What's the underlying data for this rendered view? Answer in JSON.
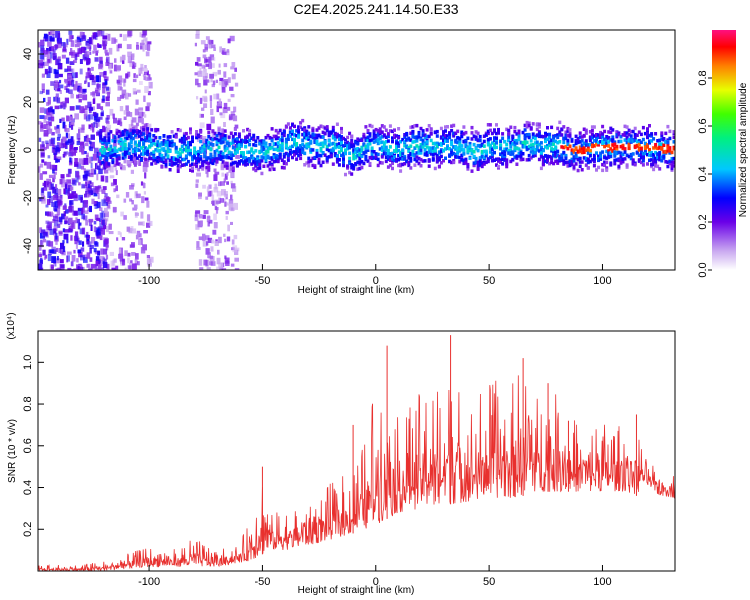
{
  "title": "C2E4.2025.241.14.50.E33",
  "spectrogram": {
    "type": "heatmap",
    "xlabel": "Height of straight line (km)",
    "ylabel": "Frequency (Hz)",
    "xlim": [
      -149,
      132
    ],
    "ylim": [
      -50,
      50
    ],
    "xticks": [
      -100,
      -50,
      0,
      50,
      100
    ],
    "yticks": [
      -40,
      -20,
      0,
      20,
      40
    ],
    "centerline": [
      [
        -120,
        0
      ],
      [
        -110,
        2
      ],
      [
        -100,
        1
      ],
      [
        -90,
        -1
      ],
      [
        -80,
        0
      ],
      [
        -70,
        1
      ],
      [
        -60,
        0
      ],
      [
        -50,
        -1
      ],
      [
        -45,
        0
      ],
      [
        -40,
        2
      ],
      [
        -38,
        4
      ],
      [
        -30,
        2
      ],
      [
        -25,
        1
      ],
      [
        -20,
        3
      ],
      [
        -15,
        -1
      ],
      [
        -10,
        -3
      ],
      [
        -5,
        1
      ],
      [
        0,
        2
      ],
      [
        10,
        0
      ],
      [
        20,
        2
      ],
      [
        30,
        1
      ],
      [
        35,
        2
      ],
      [
        40,
        0
      ],
      [
        45,
        -1
      ],
      [
        50,
        2
      ],
      [
        55,
        1
      ],
      [
        60,
        1
      ],
      [
        65,
        3
      ],
      [
        70,
        2
      ],
      [
        75,
        1
      ],
      [
        80,
        2
      ],
      [
        85,
        0
      ],
      [
        90,
        0
      ],
      [
        100,
        1
      ],
      [
        110,
        1
      ],
      [
        120,
        1
      ],
      [
        132,
        0
      ]
    ]
  },
  "colorbar": {
    "label": "Normalized spectral amplitude",
    "ticks": [
      "0.0",
      "0.2",
      "0.4",
      "0.6",
      "0.8"
    ]
  },
  "chart_data": [
    {
      "type": "heatmap",
      "title": "C2E4.2025.241.14.50.E33",
      "xlabel": "Height of straight line (km)",
      "ylabel": "Frequency (Hz)",
      "xlim": [
        -149,
        132
      ],
      "ylim": [
        -50,
        50
      ],
      "description_values": "spectral energy concentrated near 0 Hz (about -5 to 5 Hz) from -120 km to 132 km; diffuse noise at heights below -100 km and around -75 km"
    },
    {
      "type": "line",
      "xlabel": "Height of straight line (km)",
      "ylabel": "SNR (10 * v/v)",
      "yscale_label": "(x10⁴)",
      "xlim": [
        -149,
        132
      ],
      "ylim": [
        0,
        1.15
      ],
      "xticks": [
        -100,
        -50,
        0,
        50,
        100
      ],
      "yticks": [
        0.2,
        0.4,
        0.6,
        0.8,
        1.0
      ],
      "color": "#e8302e",
      "envelope": {
        "x": [
          -149,
          -130,
          -120,
          -110,
          -100,
          -90,
          -80,
          -70,
          -60,
          -55,
          -50,
          -45,
          -40,
          -30,
          -20,
          -10,
          -5,
          0,
          5,
          10,
          20,
          30,
          33,
          40,
          50,
          60,
          65,
          70,
          80,
          90,
          100,
          110,
          115,
          118,
          125,
          132
        ],
        "low": [
          0.0,
          0.0,
          0.0,
          0.01,
          0.02,
          0.02,
          0.02,
          0.02,
          0.04,
          0.05,
          0.08,
          0.1,
          0.1,
          0.12,
          0.15,
          0.18,
          0.2,
          0.22,
          0.25,
          0.28,
          0.3,
          0.3,
          0.32,
          0.33,
          0.35,
          0.35,
          0.36,
          0.38,
          0.38,
          0.38,
          0.38,
          0.38,
          0.36,
          0.42,
          0.36,
          0.35
        ],
        "high": [
          0.03,
          0.03,
          0.05,
          0.08,
          0.12,
          0.1,
          0.16,
          0.1,
          0.14,
          0.25,
          0.48,
          0.28,
          0.3,
          0.36,
          0.42,
          0.5,
          0.62,
          0.95,
          1.05,
          0.72,
          0.88,
          1.0,
          1.13,
          0.8,
          0.92,
          0.9,
          1.0,
          0.85,
          0.85,
          0.7,
          0.72,
          0.7,
          0.75,
          0.55,
          0.5,
          0.52
        ]
      },
      "peaks": [
        [
          -50,
          0.5
        ],
        [
          -10,
          0.7
        ],
        [
          5,
          1.08
        ],
        [
          33,
          1.13
        ],
        [
          65,
          1.02
        ],
        [
          76,
          0.9
        ],
        [
          85,
          0.72
        ],
        [
          115,
          0.75
        ]
      ]
    }
  ]
}
